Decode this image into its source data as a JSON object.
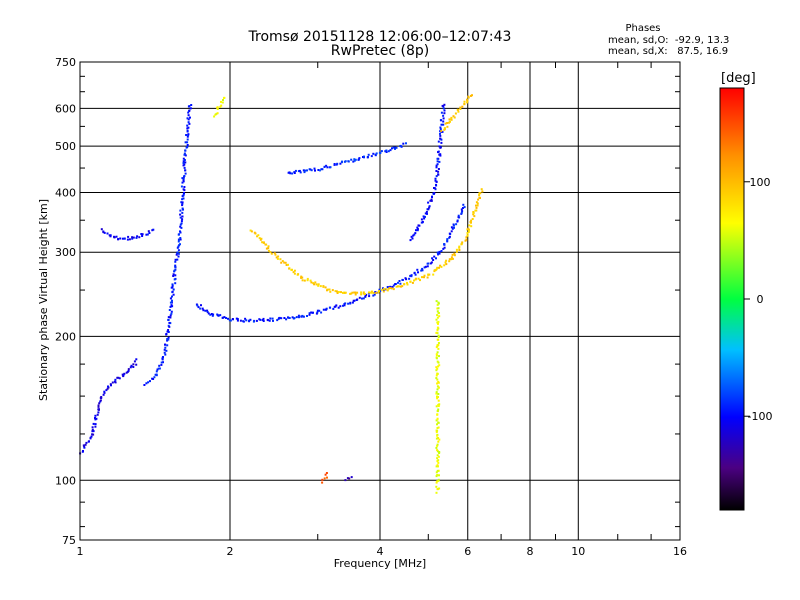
{
  "chart_data": {
    "type": "scatter",
    "title": "Tromsø 20151128 12:06:00–12:07:43",
    "subtitle": "RwPretec (8p)",
    "xlabel": "Frequency [MHz]",
    "ylabel": "Stationary phase Virtual Height [km]",
    "x_scale": "log",
    "y_scale": "log",
    "xlim": [
      1,
      16
    ],
    "ylim": [
      75,
      750
    ],
    "x_ticks": [
      1,
      2,
      4,
      6,
      8,
      10,
      16
    ],
    "y_ticks": [
      75,
      100,
      200,
      300,
      400,
      500,
      600,
      750
    ],
    "grid": true,
    "phases_box": {
      "heading": "Phases",
      "line1": "mean, sd,O:  -92.9, 13.3",
      "line2": "mean, sd,X:   87.5, 16.9"
    },
    "colorbar": {
      "label": "[deg]",
      "range": [
        -180,
        180
      ],
      "ticks": [
        100,
        0,
        -100
      ],
      "colormap": "rainbow"
    },
    "traces": [
      {
        "phase": -95,
        "points": [
          [
            1.35,
            160
          ],
          [
            1.4,
            165
          ],
          [
            1.45,
            175
          ],
          [
            1.48,
            190
          ],
          [
            1.5,
            210
          ],
          [
            1.52,
            240
          ],
          [
            1.55,
            280
          ],
          [
            1.58,
            330
          ],
          [
            1.6,
            400
          ],
          [
            1.62,
            480
          ],
          [
            1.64,
            560
          ],
          [
            1.66,
            620
          ]
        ]
      },
      {
        "phase": -95,
        "points": [
          [
            1.7,
            235
          ],
          [
            1.8,
            225
          ],
          [
            2.0,
            218
          ],
          [
            2.2,
            217
          ],
          [
            2.5,
            218
          ],
          [
            2.8,
            222
          ],
          [
            3.2,
            230
          ],
          [
            3.6,
            240
          ],
          [
            4.0,
            250
          ],
          [
            4.5,
            265
          ],
          [
            5.0,
            285
          ],
          [
            5.3,
            305
          ],
          [
            5.6,
            340
          ],
          [
            5.9,
            380
          ]
        ]
      },
      {
        "phase": -100,
        "points": [
          [
            4.6,
            320
          ],
          [
            4.9,
            360
          ],
          [
            5.1,
            400
          ],
          [
            5.2,
            450
          ],
          [
            5.25,
            500
          ],
          [
            5.3,
            560
          ],
          [
            5.35,
            620
          ]
        ]
      },
      {
        "phase": -90,
        "points": [
          [
            2.6,
            440
          ],
          [
            3.0,
            450
          ],
          [
            3.4,
            465
          ],
          [
            3.8,
            480
          ],
          [
            4.2,
            495
          ],
          [
            4.5,
            510
          ]
        ]
      },
      {
        "phase": 90,
        "points": [
          [
            2.2,
            335
          ],
          [
            2.5,
            290
          ],
          [
            2.8,
            265
          ],
          [
            3.2,
            250
          ],
          [
            3.6,
            247
          ],
          [
            4.0,
            250
          ],
          [
            4.5,
            258
          ],
          [
            5.0,
            270
          ],
          [
            5.5,
            290
          ],
          [
            5.9,
            320
          ],
          [
            6.2,
            370
          ],
          [
            6.4,
            410
          ]
        ]
      },
      {
        "phase": 95,
        "points": [
          [
            5.3,
            540
          ],
          [
            5.6,
            580
          ],
          [
            5.9,
            620
          ],
          [
            6.1,
            650
          ]
        ]
      },
      {
        "phase": 60,
        "points": [
          [
            1.85,
            580
          ],
          [
            1.9,
            610
          ],
          [
            1.95,
            640
          ]
        ]
      },
      {
        "phase": -110,
        "points": [
          [
            1.0,
            115
          ],
          [
            1.05,
            125
          ],
          [
            1.08,
            140
          ],
          [
            1.1,
            150
          ],
          [
            1.15,
            160
          ],
          [
            1.2,
            165
          ],
          [
            1.25,
            170
          ],
          [
            1.3,
            180
          ]
        ]
      },
      {
        "phase": -105,
        "points": [
          [
            1.1,
            335
          ],
          [
            1.2,
            320
          ],
          [
            1.3,
            325
          ],
          [
            1.4,
            335
          ]
        ]
      },
      {
        "phase": 150,
        "points": [
          [
            3.05,
            100
          ],
          [
            3.1,
            102
          ],
          [
            3.15,
            104
          ]
        ]
      },
      {
        "phase": -130,
        "points": [
          [
            3.4,
            101
          ],
          [
            3.5,
            102
          ]
        ]
      },
      {
        "phase": 60,
        "points": [
          [
            5.2,
            95
          ],
          [
            5.2,
            110
          ],
          [
            5.2,
            130
          ],
          [
            5.2,
            160
          ],
          [
            5.2,
            200
          ],
          [
            5.2,
            240
          ]
        ]
      }
    ]
  }
}
